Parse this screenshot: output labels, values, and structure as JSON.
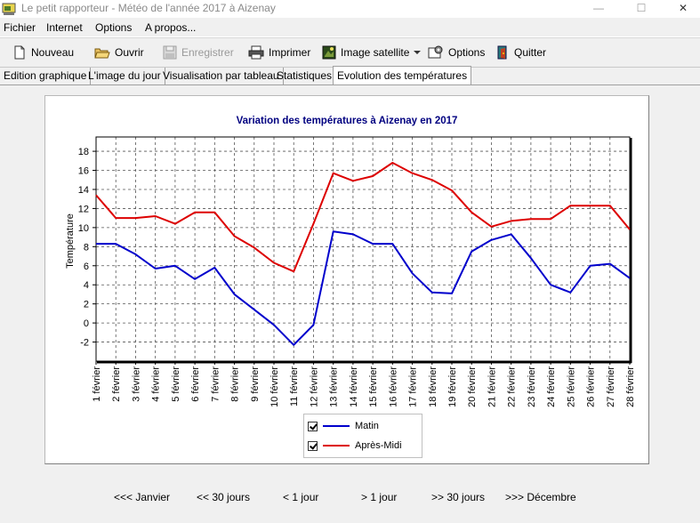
{
  "window": {
    "title": "Le petit rapporteur - Météo de l'année 2017 à Aizenay",
    "minimize": "—",
    "maximize": "☐",
    "close": "✕"
  },
  "menu": [
    "Fichier",
    "Internet",
    "Options",
    "A propos..."
  ],
  "toolbar": {
    "nouveau": "Nouveau",
    "ouvrir": "Ouvrir",
    "enregistrer": "Enregistrer",
    "imprimer": "Imprimer",
    "image_satellite": "Image satellite",
    "options": "Options",
    "quitter": "Quitter"
  },
  "tabs": [
    "Edition graphique",
    "L'image du jour",
    "Visualisation par tableau",
    "Statistiques",
    "Evolution des températures"
  ],
  "active_tab": 4,
  "chart_data": {
    "type": "line",
    "title": "Variation des températures à Aizenay en 2017",
    "ylabel": "Température",
    "xlabel": "",
    "ylim": [
      -4,
      19.5
    ],
    "yticks": [
      -2,
      0,
      2,
      4,
      6,
      8,
      10,
      12,
      14,
      16,
      18
    ],
    "grid": true,
    "legend_position": "bottom",
    "categories": [
      "1 février",
      "2 février",
      "3 février",
      "4 février",
      "5 février",
      "6 février",
      "7 février",
      "8 février",
      "9 février",
      "10 février",
      "11 février",
      "12 février",
      "13 février",
      "14 février",
      "15 février",
      "16 février",
      "17 février",
      "18 février",
      "19 février",
      "20 février",
      "21 février",
      "22 février",
      "23 février",
      "24 février",
      "25 février",
      "26 février",
      "27 février",
      "28 février"
    ],
    "series": [
      {
        "name": "Matin",
        "color": "#0000cc",
        "checked": true,
        "values": [
          8.3,
          8.3,
          7.2,
          5.7,
          6.0,
          4.6,
          5.8,
          3.0,
          1.4,
          -0.2,
          -2.3,
          -0.2,
          9.6,
          9.3,
          8.3,
          8.3,
          5.2,
          3.2,
          3.1,
          7.5,
          8.7,
          9.3,
          6.8,
          4.0,
          3.2,
          6.0,
          6.2,
          4.7
        ]
      },
      {
        "name": "Après-Midi",
        "color": "#dd0000",
        "checked": true,
        "values": [
          13.4,
          11.0,
          11.0,
          11.2,
          10.4,
          11.6,
          11.6,
          9.1,
          7.9,
          6.3,
          5.4,
          10.4,
          15.7,
          14.9,
          15.4,
          16.8,
          15.7,
          15.0,
          13.9,
          11.6,
          10.1,
          10.7,
          10.9,
          10.9,
          12.3,
          12.3,
          12.3,
          9.8
        ]
      }
    ]
  },
  "navigation": [
    "<<< Janvier",
    "<< 30 jours",
    "< 1 jour",
    "> 1 jour",
    ">> 30 jours",
    ">>> Décembre"
  ]
}
